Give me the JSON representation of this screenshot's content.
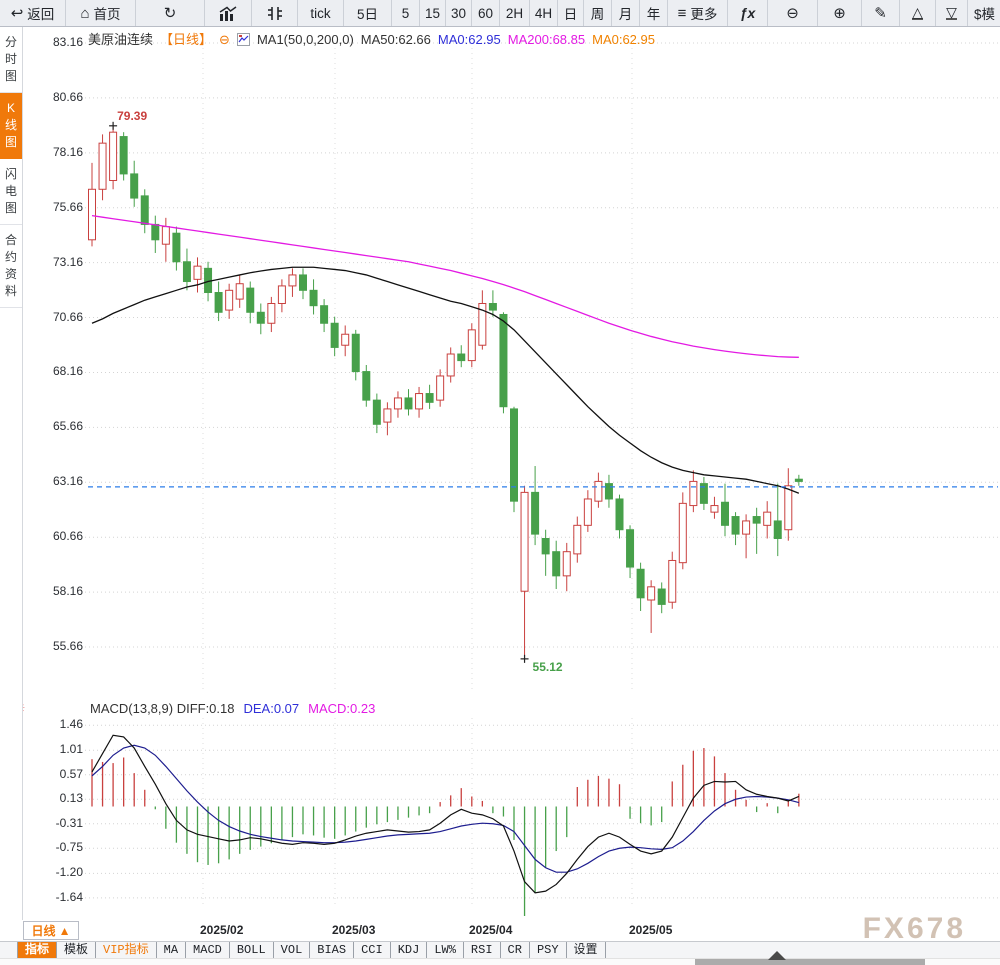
{
  "watermark": "FX678",
  "colors": {
    "accent_orange": "#f0790a",
    "up_red": "#c9403e",
    "down_green": "#47a04a",
    "ma50_black": "#111111",
    "ma200_magenta": "#e31ae3",
    "dea_blue": "#1d1d8f",
    "current_price_blue": "#2b7de9",
    "grid_gray": "#d4d4d4"
  },
  "toolbar": {
    "items": [
      {
        "name": "back-button",
        "icon": "back",
        "label": "返回"
      },
      {
        "name": "home-button",
        "icon": "home",
        "label": "首页"
      },
      {
        "name": "refresh-button",
        "icon": "refresh",
        "label": ""
      },
      {
        "name": "bar-chart-button",
        "icon": "bars",
        "label": ""
      },
      {
        "name": "candle-chart-button",
        "icon": "candles",
        "label": ""
      },
      {
        "name": "tick-period-button",
        "label": "tick"
      },
      {
        "name": "period-5d-button",
        "label": "5日"
      },
      {
        "name": "period-5-button",
        "label": "5"
      },
      {
        "name": "period-15-button",
        "label": "15"
      },
      {
        "name": "period-30-button",
        "label": "30"
      },
      {
        "name": "period-60-button",
        "label": "60"
      },
      {
        "name": "period-2h-button",
        "label": "2H"
      },
      {
        "name": "period-4h-button",
        "label": "4H"
      },
      {
        "name": "period-day-button",
        "label": "日"
      },
      {
        "name": "period-week-button",
        "label": "周"
      },
      {
        "name": "period-month-button",
        "label": "月"
      },
      {
        "name": "period-year-button",
        "label": "年"
      },
      {
        "name": "more-button",
        "icon": "menu",
        "label": "更多"
      },
      {
        "name": "indicator-fx-button",
        "icon": "fx",
        "label": ""
      },
      {
        "name": "zoom-out-button",
        "icon": "zoom-out",
        "label": ""
      },
      {
        "name": "zoom-in-button",
        "icon": "zoom-in",
        "label": ""
      },
      {
        "name": "draw-button",
        "icon": "pencil",
        "label": ""
      },
      {
        "name": "scale-up-button",
        "icon": "tri-up",
        "label": ""
      },
      {
        "name": "scale-down-button",
        "icon": "tri-down",
        "label": ""
      },
      {
        "name": "mode-button",
        "label": "$模"
      }
    ]
  },
  "sidebar": {
    "tabs": [
      {
        "label": "分时图",
        "active": false
      },
      {
        "label": "K线图",
        "active": true
      },
      {
        "label": "闪电图",
        "active": false
      },
      {
        "label": "合约资料",
        "active": false
      }
    ]
  },
  "chart_header": {
    "segments": [
      {
        "text": "美原油连续",
        "color": "#333333"
      },
      {
        "text": "【日线】",
        "color": "#f0790a"
      },
      {
        "text": "⊖",
        "color": "#f0790a",
        "name": "collapse-icon",
        "interactable": true
      },
      {
        "icon": "chart-mini",
        "name": "indicator-icon"
      },
      {
        "text": "MA1(50,0,200,0)",
        "color": "#333333"
      },
      {
        "text": "MA50:62.66",
        "color": "#333333"
      },
      {
        "text": "MA0:62.95",
        "color": "#2f2fd8"
      },
      {
        "text": "MA200:68.85",
        "color": "#e31ae3"
      },
      {
        "text": "MA0:62.95",
        "color": "#f08200"
      }
    ]
  },
  "macd_header": {
    "segments": [
      {
        "text": "MACD(13,8,9) DIFF:0.18",
        "color": "#333333"
      },
      {
        "text": "DEA:0.07",
        "color": "#2f2fd8"
      },
      {
        "text": "MACD:0.23",
        "color": "#e31ae3"
      }
    ]
  },
  "bottom": {
    "period_label": "日线",
    "period_arrow": "▲",
    "x_labels": [
      "2025/02",
      "2025/03",
      "2025/04",
      "2025/05"
    ],
    "tabs": [
      {
        "label": "指标",
        "active": true
      },
      {
        "label": "模板"
      },
      {
        "label": "VIP指标",
        "vip": true
      },
      {
        "label": "MA"
      },
      {
        "label": "MACD"
      },
      {
        "label": "BOLL"
      },
      {
        "label": "VOL"
      },
      {
        "label": "BIAS"
      },
      {
        "label": "CCI"
      },
      {
        "label": "KDJ"
      },
      {
        "label": "LW%"
      },
      {
        "label": "RSI"
      },
      {
        "label": "CR"
      },
      {
        "label": "PSY"
      },
      {
        "label": "设置"
      }
    ]
  },
  "chart_data": {
    "type": "candlestick",
    "instrument": "美原油连续",
    "period": "日线",
    "price_ticks": [
      "83.16",
      "80.66",
      "78.16",
      "75.66",
      "73.16",
      "70.66",
      "68.16",
      "65.66",
      "63.16",
      "60.66",
      "58.16",
      "55.66"
    ],
    "macd_ticks": [
      "1.46",
      "1.01",
      "0.57",
      "0.13",
      "-0.31",
      "-0.75",
      "-1.20",
      "-1.64"
    ],
    "x_tick_labels": [
      "2025/02",
      "2025/03",
      "2025/04",
      "2025/05"
    ],
    "current_price": 62.95,
    "annotations": {
      "high": {
        "label": "79.39",
        "index": 2,
        "price": 79.39
      },
      "low": {
        "label": "55.12",
        "index": 41,
        "price": 55.12
      }
    },
    "candles": [
      [
        74.2,
        77.7,
        73.9,
        76.5
      ],
      [
        76.5,
        79.0,
        76.0,
        78.6
      ],
      [
        76.9,
        79.39,
        76.5,
        79.1
      ],
      [
        78.9,
        79.1,
        76.9,
        77.2
      ],
      [
        77.2,
        77.8,
        75.7,
        76.1
      ],
      [
        76.2,
        76.5,
        74.5,
        74.9
      ],
      [
        74.9,
        75.3,
        73.6,
        74.2
      ],
      [
        74.0,
        75.2,
        73.2,
        74.8
      ],
      [
        74.5,
        74.8,
        72.8,
        73.2
      ],
      [
        73.2,
        73.8,
        71.9,
        72.3
      ],
      [
        72.4,
        73.4,
        71.8,
        73.0
      ],
      [
        72.9,
        73.2,
        71.4,
        71.8
      ],
      [
        71.8,
        72.3,
        70.5,
        70.9
      ],
      [
        71.0,
        72.2,
        70.6,
        71.9
      ],
      [
        71.5,
        72.6,
        71.1,
        72.2
      ],
      [
        72.0,
        72.3,
        70.4,
        70.9
      ],
      [
        70.9,
        71.3,
        69.9,
        70.4
      ],
      [
        70.4,
        71.6,
        70.0,
        71.3
      ],
      [
        71.3,
        72.4,
        70.9,
        72.1
      ],
      [
        72.1,
        72.9,
        71.6,
        72.6
      ],
      [
        72.6,
        72.9,
        71.5,
        71.9
      ],
      [
        71.9,
        72.4,
        70.8,
        71.2
      ],
      [
        71.2,
        71.5,
        70.0,
        70.4
      ],
      [
        70.4,
        70.7,
        68.9,
        69.3
      ],
      [
        69.4,
        70.3,
        68.9,
        69.9
      ],
      [
        69.9,
        70.1,
        67.8,
        68.2
      ],
      [
        68.2,
        68.5,
        66.6,
        66.9
      ],
      [
        66.9,
        67.2,
        65.4,
        65.8
      ],
      [
        65.9,
        66.8,
        65.3,
        66.5
      ],
      [
        66.5,
        67.3,
        66.1,
        67.0
      ],
      [
        67.0,
        67.4,
        66.2,
        66.5
      ],
      [
        66.5,
        67.5,
        66.1,
        67.2
      ],
      [
        67.2,
        67.6,
        66.5,
        66.8
      ],
      [
        66.9,
        68.3,
        66.6,
        68.0
      ],
      [
        68.0,
        69.3,
        67.7,
        69.0
      ],
      [
        69.0,
        69.4,
        68.4,
        68.7
      ],
      [
        68.7,
        70.4,
        68.4,
        70.1
      ],
      [
        69.4,
        71.9,
        69.2,
        71.3
      ],
      [
        71.3,
        71.9,
        70.7,
        71.0
      ],
      [
        70.8,
        70.9,
        66.3,
        66.6
      ],
      [
        66.5,
        66.6,
        61.8,
        62.3
      ],
      [
        58.2,
        63.0,
        55.12,
        62.7
      ],
      [
        62.7,
        63.9,
        60.3,
        60.8
      ],
      [
        60.6,
        61.0,
        58.9,
        59.9
      ],
      [
        60.0,
        60.5,
        58.3,
        58.9
      ],
      [
        58.9,
        60.4,
        58.2,
        60.0
      ],
      [
        59.9,
        61.6,
        59.5,
        61.2
      ],
      [
        61.2,
        62.8,
        60.9,
        62.4
      ],
      [
        62.3,
        63.6,
        62.0,
        63.2
      ],
      [
        63.1,
        63.5,
        62.0,
        62.4
      ],
      [
        62.4,
        62.6,
        60.6,
        61.0
      ],
      [
        61.0,
        61.2,
        58.8,
        59.3
      ],
      [
        59.2,
        59.5,
        57.3,
        57.9
      ],
      [
        57.8,
        58.7,
        56.3,
        58.4
      ],
      [
        58.3,
        58.6,
        57.2,
        57.6
      ],
      [
        57.7,
        60.0,
        57.4,
        59.6
      ],
      [
        59.5,
        62.7,
        59.2,
        62.2
      ],
      [
        62.1,
        63.7,
        61.8,
        63.2
      ],
      [
        63.1,
        63.4,
        61.9,
        62.2
      ],
      [
        61.8,
        62.5,
        61.5,
        62.1
      ],
      [
        62.25,
        63.1,
        60.7,
        61.2
      ],
      [
        61.6,
        61.8,
        60.3,
        60.8
      ],
      [
        60.8,
        61.7,
        59.7,
        61.4
      ],
      [
        61.6,
        62.0,
        59.9,
        61.3
      ],
      [
        61.2,
        62.3,
        60.6,
        61.8
      ],
      [
        61.4,
        63.1,
        59.8,
        60.6
      ],
      [
        61.0,
        63.8,
        60.5,
        63.0
      ],
      [
        63.3,
        63.5,
        63.0,
        63.2
      ]
    ],
    "ma50": [
      70.4,
      70.6,
      70.85,
      71.05,
      71.25,
      71.45,
      71.6,
      71.75,
      71.9,
      72.05,
      72.15,
      72.3,
      72.4,
      72.5,
      72.6,
      72.7,
      72.78,
      72.85,
      72.9,
      72.95,
      72.95,
      72.95,
      72.9,
      72.85,
      72.8,
      72.7,
      72.6,
      72.45,
      72.3,
      72.15,
      72.0,
      71.85,
      71.7,
      71.55,
      71.4,
      71.3,
      71.15,
      71.0,
      70.8,
      70.5,
      70.1,
      69.6,
      69.1,
      68.6,
      68.1,
      67.6,
      67.1,
      66.6,
      66.15,
      65.7,
      65.3,
      64.95,
      64.6,
      64.3,
      64.05,
      63.85,
      63.7,
      63.6,
      63.5,
      63.45,
      63.4,
      63.35,
      63.3,
      63.2,
      63.1,
      63.0,
      62.85,
      62.66
    ],
    "ma200": [
      75.3,
      75.23,
      75.16,
      75.09,
      75.02,
      74.95,
      74.88,
      74.81,
      74.74,
      74.67,
      74.6,
      74.53,
      74.46,
      74.39,
      74.32,
      74.25,
      74.18,
      74.11,
      74.04,
      73.97,
      73.9,
      73.83,
      73.76,
      73.69,
      73.62,
      73.55,
      73.48,
      73.41,
      73.34,
      73.27,
      73.2,
      73.1,
      73.0,
      72.9,
      72.8,
      72.68,
      72.56,
      72.44,
      72.3,
      72.16,
      72.0,
      71.84,
      71.66,
      71.48,
      71.3,
      71.12,
      70.94,
      70.76,
      70.58,
      70.4,
      70.24,
      70.08,
      69.94,
      69.8,
      69.68,
      69.56,
      69.46,
      69.36,
      69.28,
      69.2,
      69.13,
      69.07,
      69.01,
      68.96,
      68.92,
      68.88,
      68.86,
      68.85
    ],
    "macd": {
      "hist": [
        0.85,
        0.8,
        0.78,
        0.88,
        0.6,
        0.3,
        -0.05,
        -0.4,
        -0.65,
        -0.85,
        -1.0,
        -1.05,
        -1.02,
        -0.95,
        -0.85,
        -0.78,
        -0.72,
        -0.66,
        -0.6,
        -0.55,
        -0.5,
        -0.52,
        -0.56,
        -0.58,
        -0.52,
        -0.45,
        -0.38,
        -0.32,
        -0.28,
        -0.24,
        -0.2,
        -0.16,
        -0.12,
        0.08,
        0.2,
        0.33,
        0.18,
        0.1,
        -0.12,
        -0.18,
        -0.6,
        -1.99,
        -1.55,
        -1.1,
        -0.8,
        -0.55,
        0.35,
        0.48,
        0.55,
        0.5,
        0.4,
        -0.22,
        -0.3,
        -0.34,
        -0.28,
        0.45,
        0.75,
        1.0,
        1.05,
        0.9,
        0.6,
        0.3,
        0.12,
        -0.1,
        0.06,
        -0.12,
        0.1,
        0.23
      ],
      "diff": [
        0.62,
        0.95,
        1.28,
        1.25,
        1.05,
        0.72,
        0.4,
        0.05,
        -0.25,
        -0.42,
        -0.5,
        -0.54,
        -0.58,
        -0.62,
        -0.6,
        -0.56,
        -0.58,
        -0.62,
        -0.66,
        -0.68,
        -0.65,
        -0.66,
        -0.68,
        -0.66,
        -0.6,
        -0.53,
        -0.48,
        -0.45,
        -0.42,
        -0.44,
        -0.46,
        -0.45,
        -0.42,
        -0.3,
        -0.15,
        -0.05,
        -0.12,
        -0.15,
        -0.22,
        -0.35,
        -0.8,
        -1.35,
        -1.55,
        -1.52,
        -1.4,
        -1.2,
        -0.95,
        -0.72,
        -0.55,
        -0.48,
        -0.55,
        -0.68,
        -0.8,
        -0.85,
        -0.8,
        -0.55,
        -0.2,
        0.15,
        0.38,
        0.45,
        0.44,
        0.45,
        0.3,
        0.22,
        0.18,
        0.15,
        0.1,
        0.18
      ],
      "dea": [
        0.55,
        0.72,
        0.92,
        1.05,
        1.1,
        1.05,
        0.92,
        0.72,
        0.5,
        0.28,
        0.08,
        -0.1,
        -0.25,
        -0.36,
        -0.44,
        -0.5,
        -0.54,
        -0.57,
        -0.6,
        -0.62,
        -0.63,
        -0.64,
        -0.65,
        -0.65,
        -0.64,
        -0.62,
        -0.59,
        -0.56,
        -0.53,
        -0.51,
        -0.5,
        -0.49,
        -0.48,
        -0.45,
        -0.4,
        -0.35,
        -0.32,
        -0.3,
        -0.31,
        -0.34,
        -0.45,
        -0.7,
        -0.95,
        -1.1,
        -1.18,
        -1.18,
        -1.12,
        -1.02,
        -0.9,
        -0.8,
        -0.75,
        -0.73,
        -0.74,
        -0.76,
        -0.77,
        -0.74,
        -0.62,
        -0.45,
        -0.25,
        -0.08,
        0.05,
        0.13,
        0.17,
        0.18,
        0.17,
        0.15,
        0.12,
        0.07
      ]
    }
  }
}
